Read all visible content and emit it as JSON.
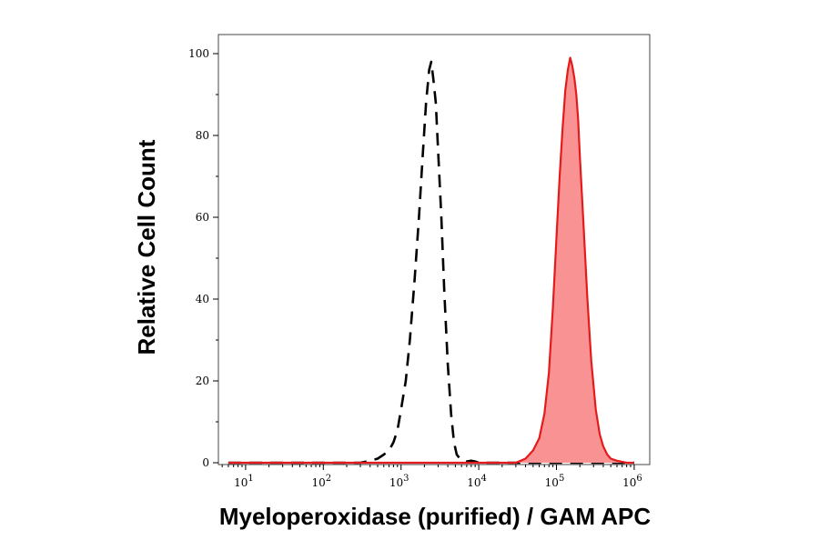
{
  "chart_data": {
    "type": "area",
    "title": "",
    "xlabel": "Myeloperoxidase (purified) / GAM APC",
    "ylabel": "Relative Cell Count",
    "x_scale": "log",
    "xlim": [
      10,
      1000000
    ],
    "ylim": [
      0,
      100
    ],
    "x_ticks": [
      {
        "value": 10,
        "base": "10",
        "exp": "1"
      },
      {
        "value": 100,
        "base": "10",
        "exp": "2"
      },
      {
        "value": 1000,
        "base": "10",
        "exp": "3"
      },
      {
        "value": 10000,
        "base": "10",
        "exp": "4"
      },
      {
        "value": 100000,
        "base": "10",
        "exp": "5"
      },
      {
        "value": 1000000,
        "base": "10",
        "exp": "6"
      }
    ],
    "y_ticks": [
      {
        "value": 0,
        "label": "0"
      },
      {
        "value": 20,
        "label": "20"
      },
      {
        "value": 40,
        "label": "40"
      },
      {
        "value": 60,
        "label": "60"
      },
      {
        "value": 80,
        "label": "80"
      },
      {
        "value": 100,
        "label": "100"
      }
    ],
    "grid": false,
    "legend": "none",
    "series": [
      {
        "style": "dashed-outline",
        "color": "#000000",
        "x": [
          6,
          300,
          400,
          500,
          600,
          700,
          800,
          900,
          1000,
          1150,
          1300,
          1500,
          1700,
          1900,
          2100,
          2300,
          2450,
          2600,
          2800,
          3000,
          3300,
          3600,
          4000,
          4400,
          4800,
          5200,
          5700,
          6200,
          7000,
          8000,
          9000,
          10000,
          1000000
        ],
        "y": [
          0,
          0,
          0.5,
          1,
          2,
          3,
          5,
          8,
          13,
          20,
          30,
          45,
          60,
          75,
          88,
          96,
          98,
          94,
          88,
          76,
          60,
          42,
          24,
          12,
          5,
          2,
          1,
          0.5,
          0.3,
          0.5,
          0.3,
          0,
          0
        ]
      },
      {
        "style": "filled",
        "color": "#e41a1c",
        "fill": "#f99393",
        "x": [
          6,
          30000,
          40000,
          50000,
          60000,
          70000,
          80000,
          90000,
          100000,
          110000,
          120000,
          130000,
          140000,
          150000,
          160000,
          170000,
          180000,
          190000,
          200000,
          220000,
          250000,
          280000,
          320000,
          360000,
          400000,
          450000,
          500000,
          600000,
          800000,
          1000000
        ],
        "y": [
          0,
          0,
          1,
          3,
          6,
          12,
          22,
          38,
          55,
          70,
          82,
          91,
          96,
          99,
          97,
          94,
          90,
          84,
          75,
          60,
          40,
          25,
          13,
          7,
          4,
          2,
          1,
          0.5,
          0,
          0
        ]
      }
    ]
  }
}
